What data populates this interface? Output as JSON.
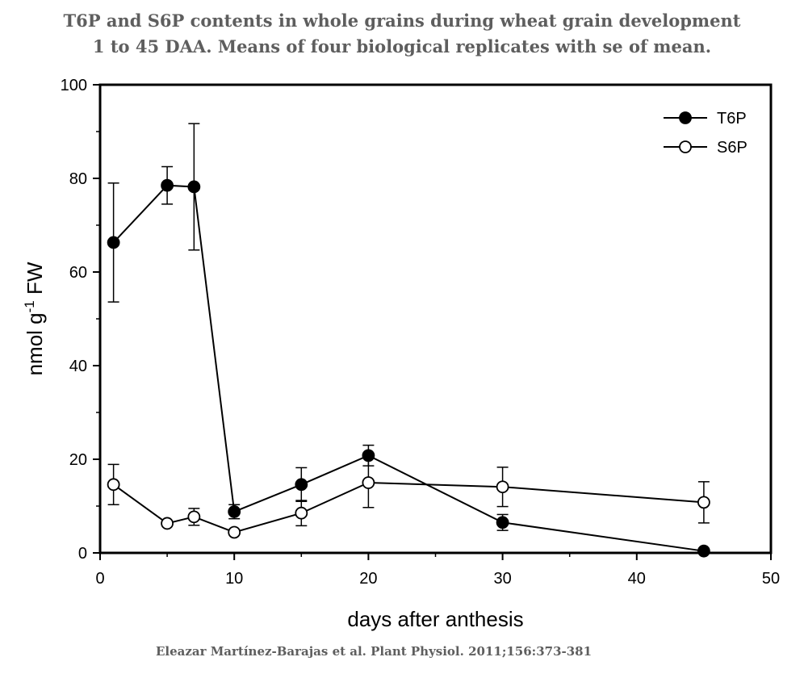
{
  "header": {
    "title_line1": "T6P and S6P contents in whole grains during wheat grain development",
    "title_line2": "1 to 45 DAA. Means of four biological replicates with se of mean."
  },
  "footer": {
    "credit": "Eleazar Martínez-Barajas et al. Plant Physiol. 2011;156:373-381"
  },
  "chart_data": {
    "type": "line",
    "title": "T6P and S6P contents in whole grains during wheat grain development 1 to 45 DAA. Means of four biological replicates with se of mean.",
    "xlabel": "days after anthesis",
    "ylabel": "nmol g-1 FW",
    "ylabel_base": "nmol g",
    "ylabel_sup": "-1",
    "ylabel_tail": " FW",
    "xlim": [
      0,
      50
    ],
    "ylim": [
      0,
      100
    ],
    "xticks": [
      0,
      10,
      20,
      30,
      40,
      50
    ],
    "yticks": [
      0,
      20,
      40,
      60,
      80,
      100
    ],
    "minor_xticks": [
      5,
      15,
      25,
      35,
      45
    ],
    "minor_yticks": [
      10,
      30,
      50,
      70,
      90
    ],
    "grid": false,
    "legend_position": "top-right",
    "series": [
      {
        "name": "T6P",
        "marker": "filled-circle",
        "color": "#000000",
        "points": [
          {
            "x": 1,
            "y": 66.3,
            "err": 12.7
          },
          {
            "x": 5,
            "y": 78.5,
            "err": 4.0
          },
          {
            "x": 7,
            "y": 78.2,
            "err": 13.5
          },
          {
            "x": 10,
            "y": 8.8,
            "err": 1.5
          },
          {
            "x": 15,
            "y": 14.6,
            "err": 3.6
          },
          {
            "x": 20,
            "y": 20.8,
            "err": 2.2
          },
          {
            "x": 30,
            "y": 6.5,
            "err": 1.7
          },
          {
            "x": 45,
            "y": 0.4,
            "err": 0
          }
        ]
      },
      {
        "name": "S6P",
        "marker": "open-circle",
        "color": "#000000",
        "points": [
          {
            "x": 1,
            "y": 14.6,
            "err": 4.3
          },
          {
            "x": 5,
            "y": 6.3,
            "err": 0
          },
          {
            "x": 7,
            "y": 7.7,
            "err": 1.8
          },
          {
            "x": 10,
            "y": 4.4,
            "err": 0
          },
          {
            "x": 15,
            "y": 8.5,
            "err": 2.7
          },
          {
            "x": 20,
            "y": 15.0,
            "err": 5.3
          },
          {
            "x": 30,
            "y": 14.1,
            "err": 4.2
          },
          {
            "x": 45,
            "y": 10.8,
            "err": 4.4
          }
        ]
      }
    ]
  }
}
